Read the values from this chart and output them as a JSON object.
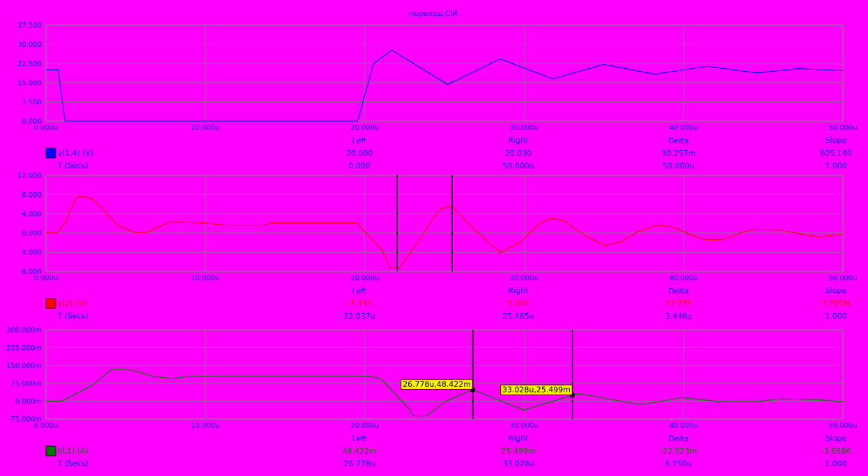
{
  "chart_data": [
    {
      "type": "line",
      "title": "переход.CIR",
      "xlim": [
        0,
        50
      ],
      "ylim": [
        0,
        37.5
      ],
      "xticks": [
        {
          "value": 0,
          "label": "0.000u"
        },
        {
          "value": 10,
          "label": "10.000u"
        },
        {
          "value": 20,
          "label": "20.000u"
        },
        {
          "value": 30,
          "label": "30.000u"
        },
        {
          "value": 40,
          "label": "40.000u"
        },
        {
          "value": 50,
          "label": "50.000u"
        }
      ],
      "yticks": [
        {
          "value": 0,
          "label": "0.000"
        },
        {
          "value": 7.5,
          "label": "7.500"
        },
        {
          "value": 15,
          "label": "15.000"
        },
        {
          "value": 22.5,
          "label": "22.500"
        },
        {
          "value": 30,
          "label": "30.000"
        },
        {
          "value": 37.5,
          "label": "37.500"
        }
      ],
      "grid": true,
      "legend": "bottom left",
      "series": [
        {
          "name": "v(1,4) (V)",
          "color": "#0000ff",
          "x": [
            0,
            0.76,
            1.2,
            19.55,
            20.55,
            21.7,
            25.2,
            28.5,
            31.8,
            35,
            38.2,
            41.5,
            44.6,
            47.2,
            50
          ],
          "values": [
            20,
            20,
            0,
            0,
            22.4,
            27.7,
            14.3,
            24.3,
            16.5,
            22.1,
            18.3,
            21.4,
            18.8,
            20.5,
            19.7
          ]
        }
      ],
      "annotations": [
        "Left",
        "Right",
        "Delta",
        "Slope",
        "20.000",
        "20.030",
        "30.257m",
        "605.140",
        "T (Secs)",
        "0.000",
        "50.000u",
        "50.000u",
        "1.000"
      ]
    },
    {
      "type": "line",
      "xlim": [
        0,
        50
      ],
      "ylim": [
        -8,
        12
      ],
      "xticks": [
        {
          "value": 0,
          "label": "0.000u"
        },
        {
          "value": 10,
          "label": "10.000u"
        },
        {
          "value": 20,
          "label": "20.000u"
        },
        {
          "value": 30,
          "label": "30.000u"
        },
        {
          "value": 40,
          "label": "40.000u"
        },
        {
          "value": 50,
          "label": "50.000u"
        }
      ],
      "yticks": [
        {
          "value": -8,
          "label": "-8.000"
        },
        {
          "value": -4,
          "label": "-4.000"
        },
        {
          "value": 0,
          "label": "0.000"
        },
        {
          "value": 4,
          "label": "4.000"
        },
        {
          "value": 8,
          "label": "8.000"
        },
        {
          "value": 12,
          "label": "12.000"
        }
      ],
      "grid": true,
      "legend": "bottom left",
      "series": [
        {
          "name": "v(2) (V)",
          "color": "#ff0000",
          "x": [
            0,
            0.7,
            1.2,
            1.9,
            2.3,
            3.0,
            4.5,
            5.6,
            6.3,
            7.7,
            8.2,
            9.9,
            11.3,
            13.7,
            14.1,
            19.5,
            21.1,
            21.6,
            22.2,
            23.1,
            24.7,
            25.4,
            26.96,
            28.5,
            29.75,
            31.0,
            31.7,
            32.5,
            33.9,
            35.1,
            36.0,
            37.1,
            38.3,
            39.3,
            40.4,
            41.4,
            42.4,
            43.8,
            44.5,
            45.9,
            47.5,
            48.5,
            50
          ],
          "values": [
            0,
            0,
            2.2,
            7.4,
            7.7,
            6.9,
            1.6,
            0.1,
            0.1,
            2.2,
            2.3,
            2.1,
            1.6,
            1.6,
            2.1,
            2.1,
            -3.6,
            -7.3,
            -7.3,
            -3.0,
            4.9,
            5.6,
            0.5,
            -4.1,
            -1.9,
            2.0,
            3.0,
            2.6,
            -0.7,
            -2.6,
            -1.9,
            0.2,
            1.6,
            1.3,
            -0.3,
            -1.4,
            -1.4,
            0.3,
            0.8,
            0.7,
            -0.3,
            -0.8,
            -0.2
          ]
        }
      ],
      "ref_lines": [
        {
          "axis": "x",
          "value": 22.037,
          "color": "#000000"
        },
        {
          "axis": "x",
          "value": 25.485,
          "color": "#000000"
        }
      ],
      "annotations": [
        "Left",
        "Right",
        "Delta",
        "Slope",
        "-7.433",
        "5.341",
        "12.775",
        "3.705M",
        "T (Secs)",
        "22.037u",
        "25.485u",
        "3.448u",
        "1.000"
      ]
    },
    {
      "type": "line",
      "xlim": [
        0,
        50
      ],
      "ylim": [
        -75,
        300
      ],
      "xticks": [
        {
          "value": 0,
          "label": "0.000u"
        },
        {
          "value": 10,
          "label": "10.000u"
        },
        {
          "value": 20,
          "label": "20.000u"
        },
        {
          "value": 30,
          "label": "30.000u"
        },
        {
          "value": 40,
          "label": "40.000u"
        },
        {
          "value": 50,
          "label": "50.000u"
        }
      ],
      "yticks": [
        {
          "value": -75,
          "label": "-75.000m"
        },
        {
          "value": 0,
          "label": "0.000m"
        },
        {
          "value": 75,
          "label": "75.000m"
        },
        {
          "value": 150,
          "label": "150.000m"
        },
        {
          "value": 225,
          "label": "225.000m"
        },
        {
          "value": 300,
          "label": "300.000m"
        }
      ],
      "grid": true,
      "legend": "bottom left",
      "series": [
        {
          "name": "I(L1) (A)",
          "color": "#007800",
          "x": [
            0,
            1.0,
            2.9,
            4.1,
            4.8,
            5.8,
            6.7,
            7.9,
            9.1,
            20.4,
            21.0,
            22.8,
            23.05,
            23.9,
            25.1,
            26.778,
            30.0,
            33.028,
            33.5,
            37.3,
            39.9,
            42.3,
            44.6,
            46.1,
            48.4,
            50
          ],
          "values": [
            0,
            0,
            66,
            133,
            136,
            123,
            104,
            95,
            104,
            104,
            95,
            -34,
            -62,
            -62,
            0,
            48,
            -38,
            25,
            31,
            -15,
            15,
            -2,
            -2,
            10,
            6,
            -2
          ]
        }
      ],
      "ref_lines": [
        {
          "axis": "x",
          "value": 26.778,
          "color": "#000000"
        },
        {
          "axis": "x",
          "value": 33.028,
          "color": "#000000"
        }
      ],
      "annotations": [
        {
          "text": "26.778u,48.422m",
          "x": 26.778,
          "y": 48.422
        },
        {
          "text": "33.028u,25.499m",
          "x": 33.028,
          "y": 25.499
        },
        "Left",
        "Right",
        "Delta",
        "Slope",
        "48.422m",
        "25.499m",
        "-22.923m",
        "-3.668K",
        "T (Secs)",
        "26.778u",
        "33.028u",
        "6.250u",
        "1.000"
      ]
    }
  ]
}
